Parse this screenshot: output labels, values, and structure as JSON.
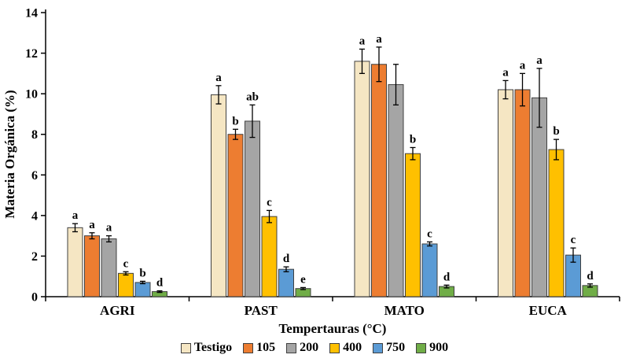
{
  "chart_data": {
    "type": "bar",
    "title": "",
    "xlabel": "Tempertauras (°C)",
    "ylabel": "Materia Orgánica (%)",
    "ylim": [
      0,
      14
    ],
    "yticks": [
      0,
      2,
      4,
      6,
      8,
      10,
      12,
      14
    ],
    "grid": false,
    "legend_position": "bottom",
    "categories": [
      "AGRI",
      "PAST",
      "MATO",
      "EUCA"
    ],
    "series": [
      {
        "name": "Testigo",
        "color": "#F5E6C3",
        "values": [
          3.4,
          9.95,
          11.6,
          10.2
        ],
        "errors": [
          0.2,
          0.45,
          0.6,
          0.45
        ],
        "letters": [
          "a",
          "a",
          "a",
          "a"
        ]
      },
      {
        "name": "105",
        "color": "#ED7D31",
        "values": [
          3.0,
          8.0,
          11.45,
          10.2
        ],
        "errors": [
          0.15,
          0.25,
          0.85,
          0.8
        ],
        "letters": [
          "a",
          "b",
          "a",
          "a"
        ]
      },
      {
        "name": "200",
        "color": "#A5A5A5",
        "values": [
          2.85,
          8.65,
          10.45,
          9.8
        ],
        "errors": [
          0.15,
          0.8,
          1.0,
          1.45
        ],
        "letters": [
          "a",
          "ab",
          "",
          "a"
        ]
      },
      {
        "name": "400",
        "color": "#FFC000",
        "values": [
          1.15,
          3.95,
          7.05,
          7.25
        ],
        "errors": [
          0.08,
          0.3,
          0.3,
          0.5
        ],
        "letters": [
          "c",
          "c",
          "b",
          "b"
        ]
      },
      {
        "name": "750",
        "color": "#5B9BD5",
        "values": [
          0.7,
          1.35,
          2.6,
          2.05
        ],
        "errors": [
          0.06,
          0.12,
          0.1,
          0.35
        ],
        "letters": [
          "b",
          "d",
          "c",
          "c"
        ]
      },
      {
        "name": "900",
        "color": "#70AD47",
        "values": [
          0.25,
          0.4,
          0.5,
          0.55
        ],
        "errors": [
          0.04,
          0.05,
          0.07,
          0.08
        ],
        "letters": [
          "d",
          "e",
          "d",
          "d"
        ]
      }
    ]
  }
}
